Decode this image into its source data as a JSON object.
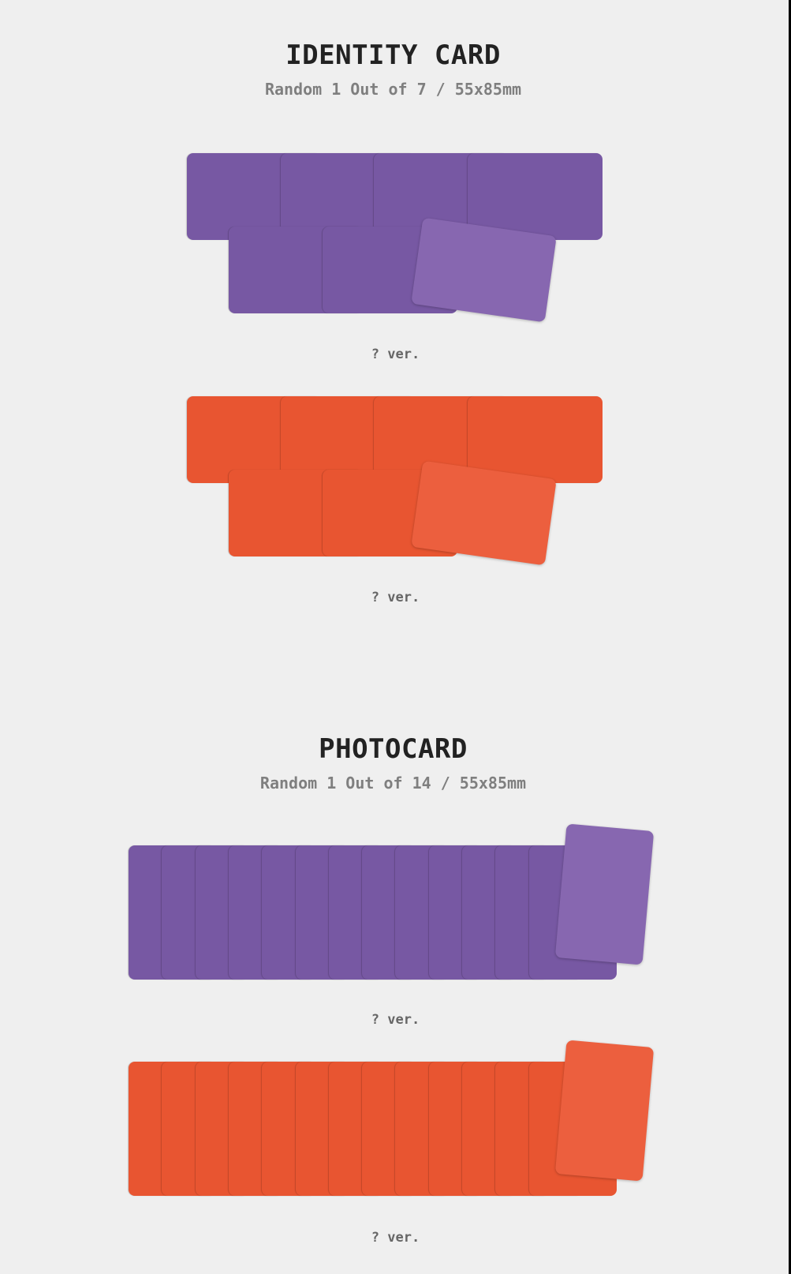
{
  "colors": {
    "purple": "#7758a3",
    "purple_top": "#8767b0",
    "orange": "#e85531",
    "orange_top": "#ec5f3e",
    "background": "#efefef"
  },
  "identity_card": {
    "title": "IDENTITY CARD",
    "subtitle": "Random 1 Out of 7 / 55x85mm",
    "versions": [
      {
        "label": "? ver.",
        "color": "purple",
        "card_count": 7
      },
      {
        "label": "? ver.",
        "color": "orange",
        "card_count": 7
      }
    ]
  },
  "photocard": {
    "title": "PHOTOCARD",
    "subtitle": "Random 1 Out of 14 / 55x85mm",
    "versions": [
      {
        "label": "? ver.",
        "color": "purple",
        "card_count": 14
      },
      {
        "label": "? ver.",
        "color": "orange",
        "card_count": 14
      }
    ]
  }
}
